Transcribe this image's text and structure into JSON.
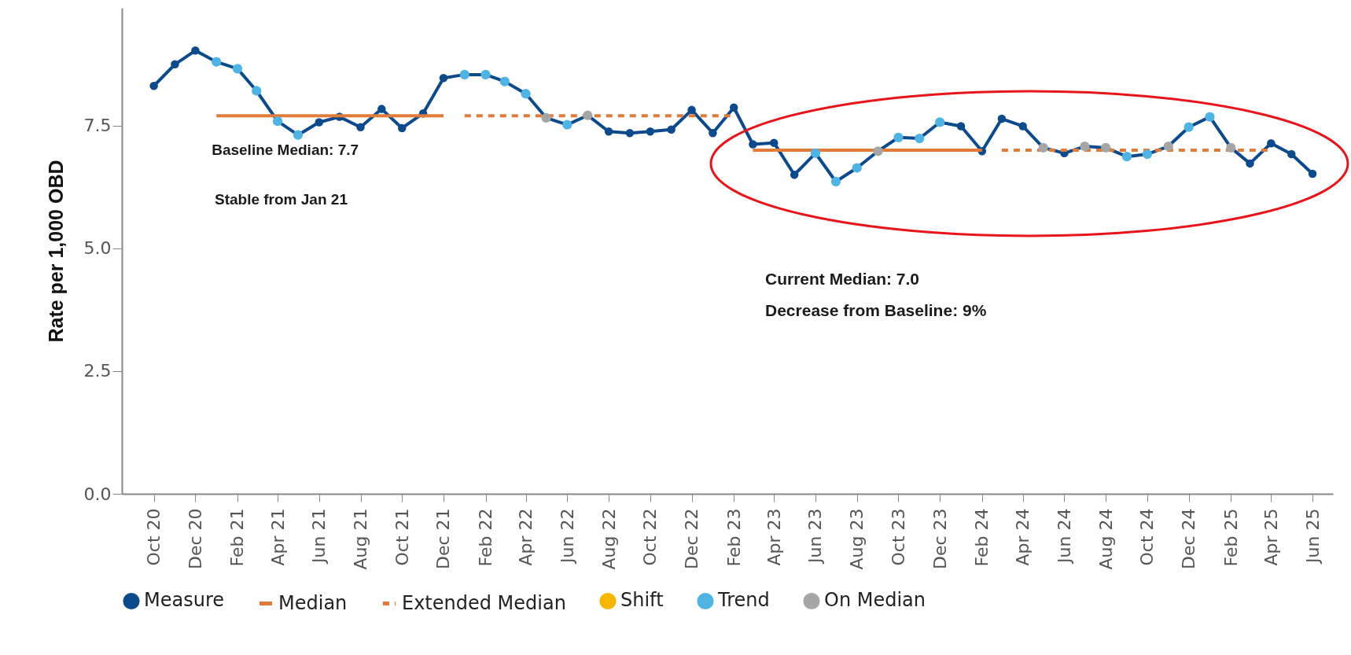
{
  "chart_data": {
    "type": "line",
    "ylabel": "Rate per 1,000 OBD",
    "x": [
      "2020-10",
      "2020-11",
      "2020-12",
      "2021-01",
      "2021-02",
      "2021-03",
      "2021-04",
      "2021-05",
      "2021-06",
      "2021-07",
      "2021-08",
      "2021-09",
      "2021-10",
      "2021-11",
      "2021-12",
      "2022-01",
      "2022-02",
      "2022-03",
      "2022-04",
      "2022-05",
      "2022-06",
      "2022-07",
      "2022-08",
      "2022-09",
      "2022-10",
      "2022-11",
      "2022-12",
      "2023-01",
      "2023-02",
      "2023-03",
      "2023-04",
      "2023-05",
      "2023-06",
      "2023-07",
      "2023-08",
      "2023-09",
      "2023-10",
      "2023-11",
      "2023-12",
      "2024-01",
      "2024-02",
      "2024-03",
      "2024-04",
      "2024-05",
      "2024-06",
      "2024-07",
      "2024-08",
      "2024-09",
      "2024-10",
      "2024-11",
      "2024-12",
      "2025-01",
      "2025-02",
      "2025-03",
      "2025-04",
      "2025-05",
      "2025-06"
    ],
    "series": [
      {
        "name": "Measure",
        "marker": "circle",
        "color": "#0d4a8c",
        "values": [
          8.31,
          8.75,
          9.03,
          8.8,
          8.66,
          8.21,
          7.59,
          7.31,
          7.57,
          7.68,
          7.47,
          7.84,
          7.45,
          7.75,
          8.47,
          8.54,
          8.54,
          8.4,
          8.15,
          7.66,
          7.52,
          7.71,
          7.38,
          7.35,
          7.38,
          7.42,
          7.82,
          7.35,
          7.87,
          7.12,
          7.15,
          6.5,
          6.94,
          6.36,
          6.64,
          6.98,
          7.26,
          7.24,
          7.57,
          7.49,
          6.98,
          7.64,
          7.49,
          7.05,
          6.94,
          7.08,
          7.05,
          6.87,
          6.92,
          7.08,
          7.47,
          7.68,
          7.05,
          6.73,
          7.14,
          6.92,
          6.52
        ]
      },
      {
        "name": "Median",
        "type": "line",
        "line_style": "solid",
        "color": "#e07b39",
        "values": [
          null,
          null,
          null,
          7.7,
          7.7,
          7.7,
          7.7,
          7.7,
          7.7,
          7.7,
          7.7,
          7.7,
          7.7,
          7.7,
          7.7,
          null,
          null,
          null,
          null,
          null,
          null,
          null,
          null,
          null,
          null,
          null,
          null,
          null,
          null,
          7.0,
          7.0,
          7.0,
          7.0,
          7.0,
          7.0,
          7.0,
          7.0,
          7.0,
          7.0,
          7.0,
          7.0,
          null,
          null,
          null,
          null,
          null,
          null,
          null,
          null,
          null,
          null,
          null,
          null,
          null,
          null,
          null,
          null
        ]
      },
      {
        "name": "Extended Median",
        "type": "line",
        "line_style": "dashed",
        "color": "#e07b39",
        "values": [
          null,
          null,
          null,
          null,
          null,
          null,
          null,
          null,
          null,
          null,
          null,
          null,
          null,
          null,
          null,
          7.7,
          7.7,
          7.7,
          7.7,
          7.7,
          7.7,
          7.7,
          7.7,
          7.7,
          7.7,
          7.7,
          7.7,
          7.7,
          7.7,
          null,
          null,
          null,
          null,
          null,
          null,
          null,
          null,
          null,
          null,
          null,
          null,
          7.0,
          7.0,
          7.0,
          7.0,
          7.0,
          7.0,
          7.0,
          7.0,
          7.0,
          7.0,
          7.0,
          7.0,
          7.0,
          7.0,
          null,
          null
        ]
      },
      {
        "name": "Shift",
        "type": "scatter",
        "marker": "circle",
        "color": "#f5b700",
        "values": [
          null,
          null,
          null,
          null,
          null,
          null,
          null,
          null,
          null,
          null,
          null,
          null,
          null,
          null,
          null,
          null,
          null,
          null,
          null,
          null,
          null,
          null,
          null,
          null,
          null,
          null,
          null,
          null,
          null,
          null,
          null,
          null,
          null,
          null,
          null,
          null,
          null,
          null,
          null,
          null,
          null,
          null,
          null,
          null,
          null,
          null,
          null,
          null,
          null,
          null,
          null,
          null,
          null,
          null,
          null,
          null,
          null
        ]
      },
      {
        "name": "Trend",
        "type": "scatter",
        "marker": "circle",
        "color": "#4fb3e3",
        "values": [
          null,
          null,
          null,
          8.8,
          8.66,
          8.21,
          7.59,
          7.31,
          null,
          null,
          null,
          null,
          null,
          null,
          null,
          8.54,
          8.54,
          8.4,
          8.15,
          null,
          7.52,
          null,
          null,
          null,
          null,
          null,
          null,
          null,
          null,
          null,
          null,
          null,
          6.94,
          6.36,
          6.64,
          null,
          7.26,
          7.24,
          7.57,
          null,
          null,
          null,
          null,
          null,
          null,
          null,
          null,
          6.87,
          6.92,
          null,
          7.47,
          7.68,
          null,
          null,
          null,
          null,
          null
        ]
      },
      {
        "name": "On Median",
        "type": "scatter",
        "marker": "circle",
        "color": "#a6a6a6",
        "values": [
          null,
          null,
          null,
          null,
          null,
          null,
          null,
          null,
          null,
          null,
          null,
          null,
          null,
          null,
          null,
          null,
          null,
          null,
          null,
          7.66,
          null,
          7.71,
          null,
          null,
          null,
          null,
          null,
          null,
          null,
          null,
          null,
          null,
          null,
          null,
          null,
          6.98,
          null,
          null,
          null,
          null,
          null,
          null,
          null,
          7.05,
          null,
          7.08,
          7.05,
          null,
          null,
          7.08,
          null,
          null,
          7.05,
          null,
          null,
          null,
          null
        ]
      }
    ],
    "xlim": [
      "2020-08-15",
      "2025-07-01"
    ],
    "xticks": [
      {
        "value": "2020-10",
        "label": "Oct 20"
      },
      {
        "value": "2020-12",
        "label": "Dec 20"
      },
      {
        "value": "2021-02",
        "label": "Feb 21"
      },
      {
        "value": "2021-04",
        "label": "Apr 21"
      },
      {
        "value": "2021-06",
        "label": "Jun 21"
      },
      {
        "value": "2021-08",
        "label": "Aug 21"
      },
      {
        "value": "2021-10",
        "label": "Oct 21"
      },
      {
        "value": "2021-12",
        "label": "Dec 21"
      },
      {
        "value": "2022-02",
        "label": "Feb 22"
      },
      {
        "value": "2022-04",
        "label": "Apr 22"
      },
      {
        "value": "2022-06",
        "label": "Jun 22"
      },
      {
        "value": "2022-08",
        "label": "Aug 22"
      },
      {
        "value": "2022-10",
        "label": "Oct 22"
      },
      {
        "value": "2022-12",
        "label": "Dec 22"
      },
      {
        "value": "2023-02",
        "label": "Feb 23"
      },
      {
        "value": "2023-04",
        "label": "Apr 23"
      },
      {
        "value": "2023-06",
        "label": "Jun 23"
      },
      {
        "value": "2023-08",
        "label": "Aug 23"
      },
      {
        "value": "2023-10",
        "label": "Oct 23"
      },
      {
        "value": "2023-12",
        "label": "Dec 23"
      },
      {
        "value": "2024-02",
        "label": "Feb 24"
      },
      {
        "value": "2024-04",
        "label": "Apr 24"
      },
      {
        "value": "2024-06",
        "label": "Jun 24"
      },
      {
        "value": "2024-08",
        "label": "Aug 24"
      },
      {
        "value": "2024-10",
        "label": "Oct 24"
      },
      {
        "value": "2024-12",
        "label": "Dec 24"
      },
      {
        "value": "2025-02",
        "label": "Feb 25"
      },
      {
        "value": "2025-04",
        "label": "Apr 25"
      },
      {
        "value": "2025-06",
        "label": "Jun 25"
      }
    ],
    "ylim": [
      0,
      9.9
    ],
    "yticks": [
      {
        "value": 0,
        "label": "0.0"
      },
      {
        "value": 2.5,
        "label": "2.5"
      },
      {
        "value": 5,
        "label": "5.0"
      },
      {
        "value": 7.5,
        "label": "7.5"
      }
    ],
    "grid": false,
    "legend": "bottom",
    "annotations": [
      {
        "text": "Baseline Median: 7.7",
        "x": "2021-01",
        "y": 7.7
      },
      "Stable from Jan 21",
      "Current Median: 7.0",
      "Decrease from Baseline: 9%"
    ]
  }
}
